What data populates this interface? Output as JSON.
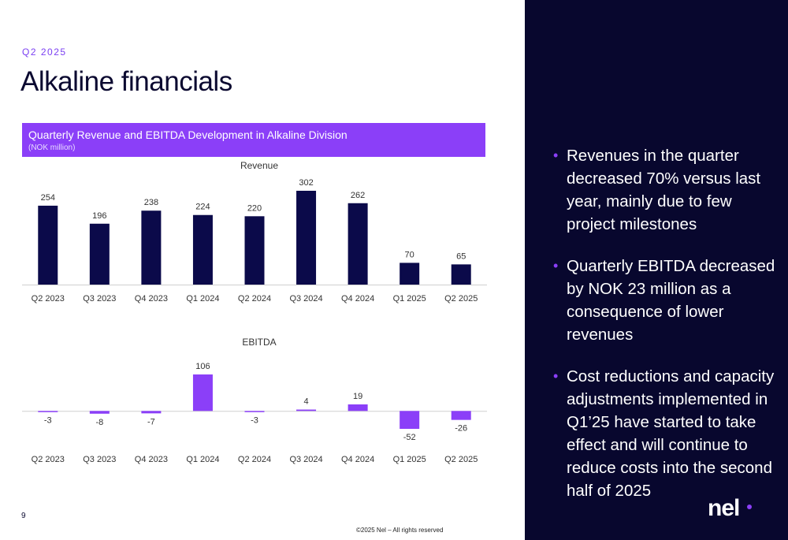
{
  "eyebrow": "Q2 2025",
  "title": "Alkaline financials",
  "banner": {
    "title": "Quarterly Revenue and EBITDA Development in Alkaline Division",
    "subtitle": "(NOK million)"
  },
  "chart_data": [
    {
      "type": "bar",
      "title": "Revenue",
      "categories": [
        "Q2 2023",
        "Q3 2023",
        "Q4 2023",
        "Q1 2024",
        "Q2 2024",
        "Q3 2024",
        "Q4 2024",
        "Q1 2025",
        "Q2 2025"
      ],
      "values": [
        254,
        196,
        238,
        224,
        220,
        302,
        262,
        70,
        65
      ],
      "ylim": [
        0,
        302
      ],
      "color": "#0b0a4a",
      "grid": false
    },
    {
      "type": "bar",
      "title": "EBITDA",
      "categories": [
        "Q2 2023",
        "Q3 2023",
        "Q4 2023",
        "Q1 2024",
        "Q2 2024",
        "Q3 2024",
        "Q4 2024",
        "Q1 2025",
        "Q2 2025"
      ],
      "values": [
        -3,
        -8,
        -7,
        106,
        -3,
        4,
        19,
        -52,
        -26
      ],
      "ylim": [
        -52,
        106
      ],
      "color": "#8b3ff8",
      "grid": false
    }
  ],
  "bullets": [
    "Revenues in the quarter decreased 70% versus last year, mainly due to few project milestones",
    "Quarterly EBITDA decreased by NOK 23 million as a consequence of lower revenues",
    "Cost reductions and capacity adjustments implemented in Q1’25 have started to take effect and will continue to reduce costs into the second half of 2025"
  ],
  "logo_text": "nel",
  "page_number": "9",
  "footer": "©2025 Nel – All rights reserved",
  "colors": {
    "accent": "#8b3ff8",
    "dark": "#08072e",
    "bar_dark": "#0b0a4a"
  }
}
